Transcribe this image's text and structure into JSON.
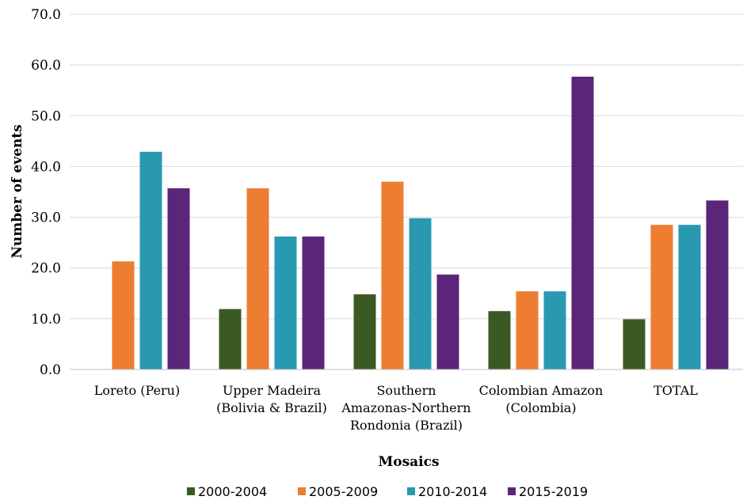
{
  "chart_data": {
    "type": "bar",
    "title": "",
    "xlabel": "Mosaics",
    "ylabel": "Number of events",
    "ylim": [
      0,
      70
    ],
    "yticks": [
      "0.0",
      "10.0",
      "20.0",
      "30.0",
      "40.0",
      "50.0",
      "60.0",
      "70.0"
    ],
    "grid": true,
    "legend_position": "bottom",
    "categories": [
      [
        "Loreto (Peru)"
      ],
      [
        "Upper Madeira",
        "(Bolivia & Brazil)"
      ],
      [
        "Southern",
        "Amazonas-Northern",
        "Rondonia (Brazil)"
      ],
      [
        "Colombian Amazon",
        "(Colombia)"
      ],
      [
        "TOTAL"
      ]
    ],
    "series": [
      {
        "name": "2000-2004",
        "color": "#3b5a23",
        "values": [
          0,
          11.9,
          14.8,
          11.5,
          9.9
        ]
      },
      {
        "name": "2005-2009",
        "color": "#ed7d31",
        "values": [
          21.3,
          35.7,
          37.0,
          15.4,
          28.5
        ]
      },
      {
        "name": "2010-2014",
        "color": "#2899b0",
        "values": [
          42.9,
          26.2,
          29.8,
          15.4,
          28.5
        ]
      },
      {
        "name": "2015-2019",
        "color": "#5b2579",
        "values": [
          35.7,
          26.2,
          18.7,
          57.7,
          33.3
        ]
      }
    ]
  }
}
